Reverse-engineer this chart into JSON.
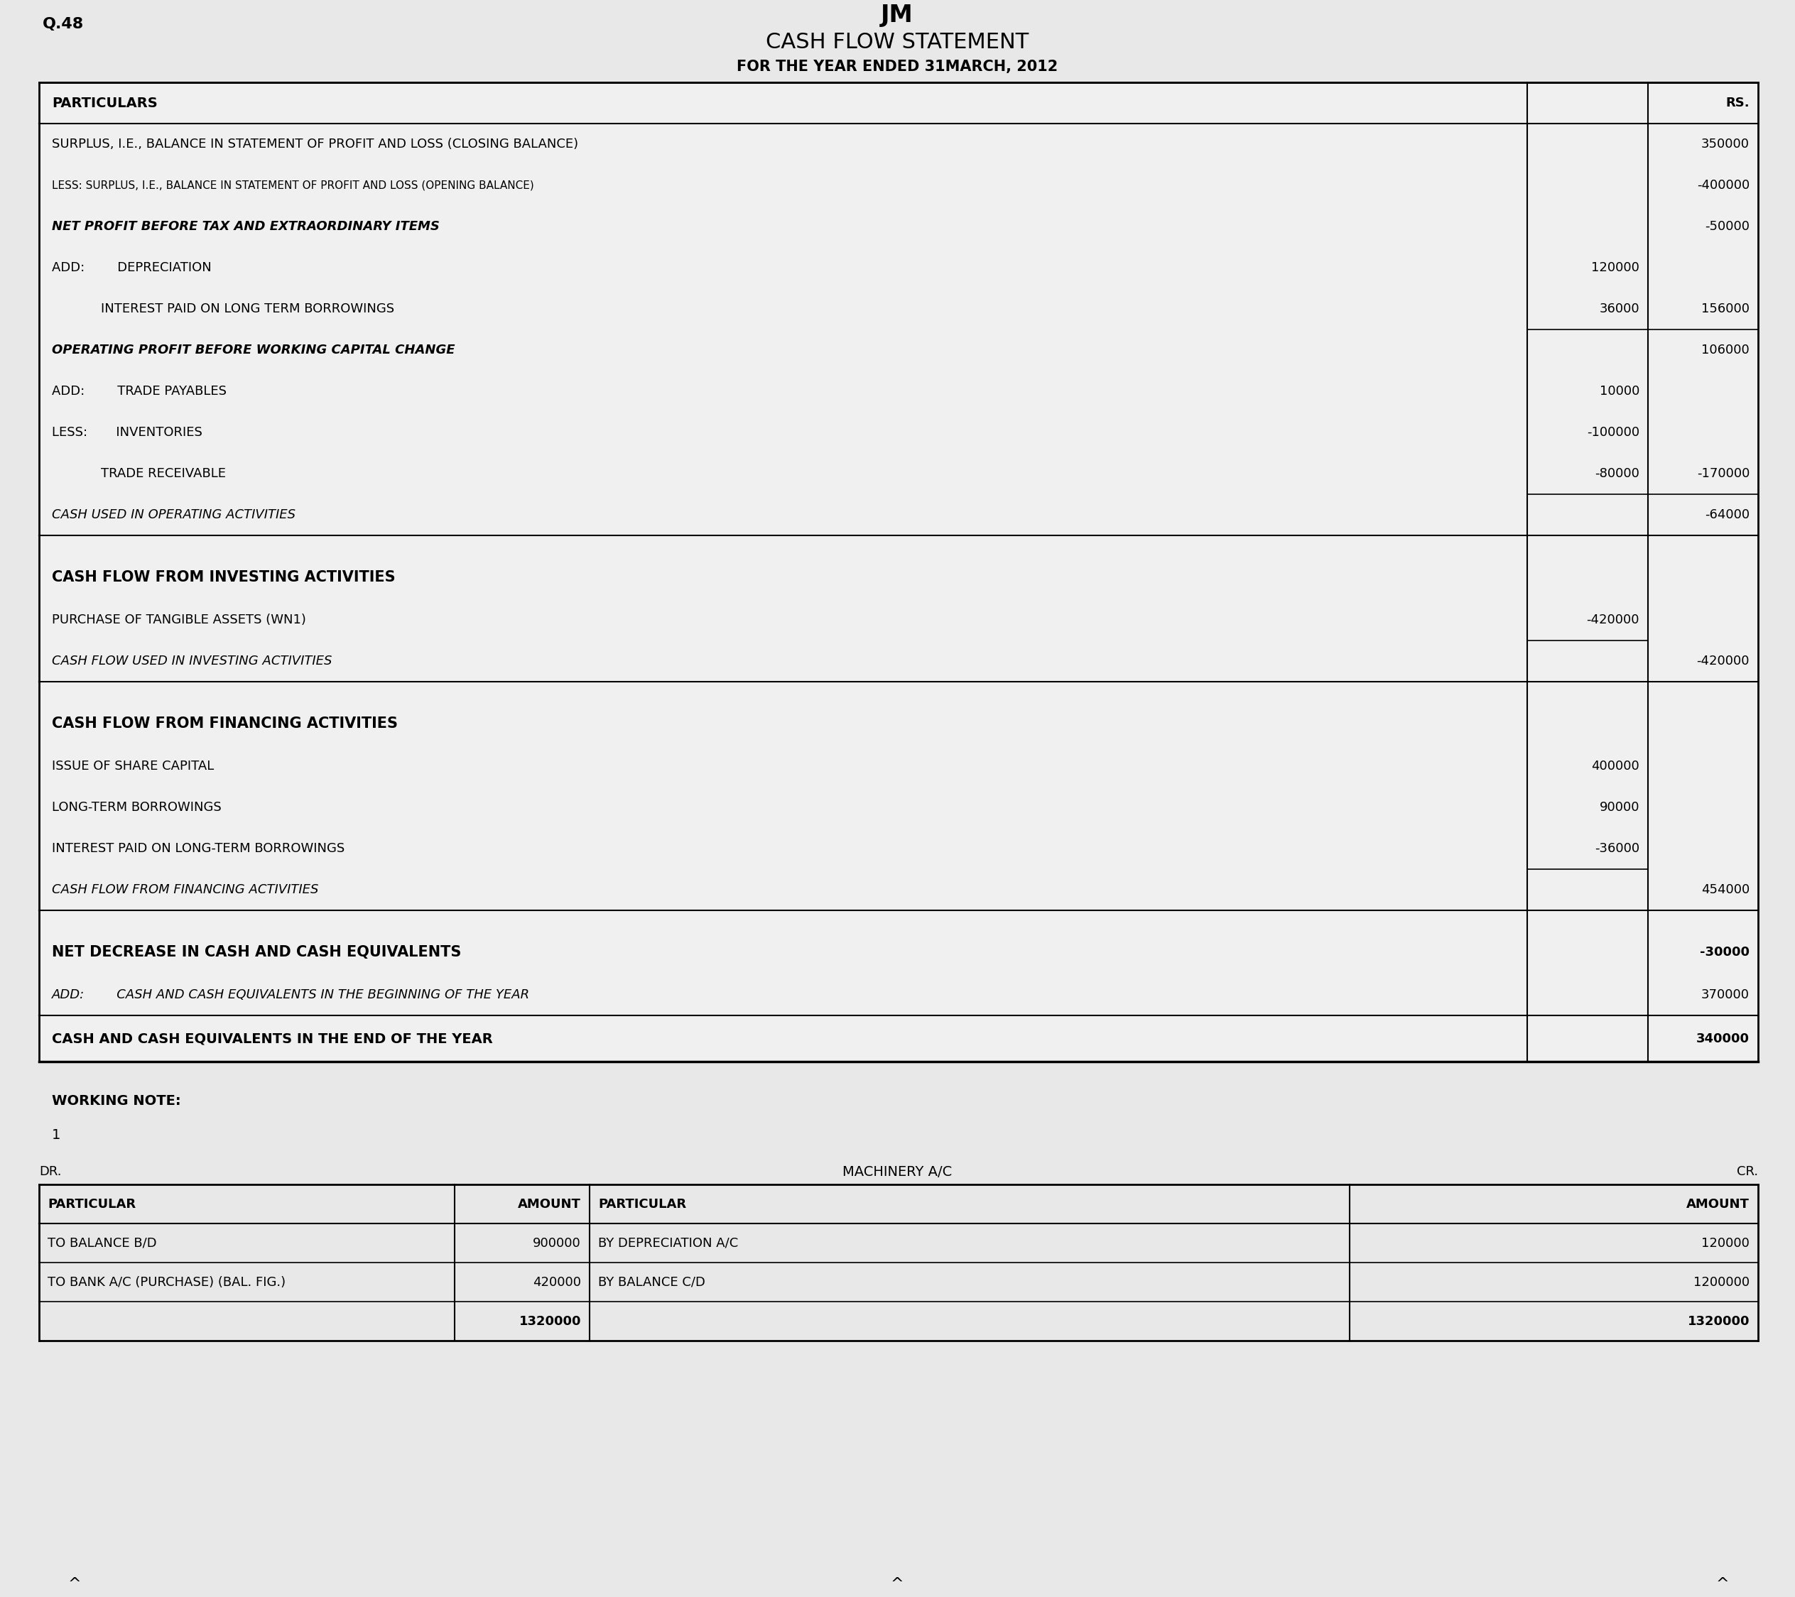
{
  "title": "CASH FLOW STATEMENT",
  "subtitle": "FOR THE YEAR ENDED 31MARCH, 2012",
  "question_no": "Q.48",
  "logo": "JM",
  "bg_color": "#e8e8e8",
  "rows": [
    {
      "text": "PARTICULARS",
      "col1": "",
      "col2": "RS.",
      "style": "header_bold"
    },
    {
      "text": "SURPLUS, I.E., BALANCE IN STATEMENT OF PROFIT AND LOSS (CLOSING BALANCE)",
      "col1": "",
      "col2": "350000",
      "style": "normal"
    },
    {
      "text": "LESS: SURPLUS, I.E., BALANCE IN STATEMENT OF PROFIT AND LOSS (OPENING BALANCE)",
      "col1": "",
      "col2": "-400000",
      "style": "small"
    },
    {
      "text": "NET PROFIT BEFORE TAX AND EXTRAORDINARY ITEMS",
      "col1": "",
      "col2": "-50000",
      "style": "italic_bold"
    },
    {
      "text": "ADD:        DEPRECIATION",
      "col1": "120000",
      "col2": "",
      "style": "normal",
      "indent": 1
    },
    {
      "text": "            INTEREST PAID ON LONG TERM BORROWINGS",
      "col1": "36000",
      "col2": "156000",
      "style": "normal",
      "indent": 2,
      "underline_cols": true
    },
    {
      "text": "OPERATING PROFIT BEFORE WORKING CAPITAL CHANGE",
      "col1": "",
      "col2": "106000",
      "style": "italic_bold"
    },
    {
      "text": "ADD:        TRADE PAYABLES",
      "col1": "10000",
      "col2": "",
      "style": "normal",
      "indent": 1
    },
    {
      "text": "LESS:       INVENTORIES",
      "col1": "-100000",
      "col2": "",
      "style": "normal",
      "indent": 1
    },
    {
      "text": "            TRADE RECEIVABLE",
      "col1": "-80000",
      "col2": "-170000",
      "style": "normal",
      "indent": 2,
      "underline_cols": true
    },
    {
      "text": "CASH USED IN OPERATING ACTIVITIES",
      "col1": "",
      "col2": "-64000",
      "style": "italic_underline"
    },
    {
      "text": "",
      "col1": "",
      "col2": "",
      "style": "spacer"
    },
    {
      "text": "CASH FLOW FROM INVESTING ACTIVITIES",
      "col1": "",
      "col2": "",
      "style": "section_bold"
    },
    {
      "text": "PURCHASE OF TANGIBLE ASSETS (WN1)",
      "col1": "-420000",
      "col2": "",
      "style": "normal",
      "underline_col1": true
    },
    {
      "text": "CASH FLOW USED IN INVESTING ACTIVITIES",
      "col1": "",
      "col2": "-420000",
      "style": "italic_underline"
    },
    {
      "text": "",
      "col1": "",
      "col2": "",
      "style": "spacer"
    },
    {
      "text": "CASH FLOW FROM FINANCING ACTIVITIES",
      "col1": "",
      "col2": "",
      "style": "section_bold"
    },
    {
      "text": "ISSUE OF SHARE CAPITAL",
      "col1": "400000",
      "col2": "",
      "style": "normal"
    },
    {
      "text": "LONG-TERM BORROWINGS",
      "col1": "90000",
      "col2": "",
      "style": "normal"
    },
    {
      "text": "INTEREST PAID ON LONG-TERM BORROWINGS",
      "col1": "-36000",
      "col2": "",
      "style": "normal",
      "underline_col1": true
    },
    {
      "text": "CASH FLOW FROM FINANCING ACTIVITIES",
      "col1": "",
      "col2": "454000",
      "style": "italic_underline"
    },
    {
      "text": "",
      "col1": "",
      "col2": "",
      "style": "spacer"
    },
    {
      "text": "NET DECREASE IN CASH AND CASH EQUIVALENTS",
      "col1": "",
      "col2": "-30000",
      "style": "bold_large"
    },
    {
      "text": "ADD:        CASH AND CASH EQUIVALENTS IN THE BEGINNING OF THE YEAR",
      "col1": "",
      "col2": "370000",
      "style": "italic_normal",
      "indent": 1
    },
    {
      "text": "CASH AND CASH EQUIVALENTS IN THE END OF THE YEAR",
      "col1": "",
      "col2": "340000",
      "style": "final_bold"
    }
  ],
  "working_note_title": "WORKING NOTE:",
  "wn_number": "1",
  "wn_dr": "DR.",
  "wn_account": "MACHINERY A/C",
  "wn_cr": "CR.",
  "wn_headers": [
    "PARTICULAR",
    "AMOUNT",
    "PARTICULAR",
    "AMOUNT"
  ],
  "wn_rows": [
    [
      "TO BALANCE B/D",
      "900000",
      "BY DEPRECIATION A/C",
      "120000"
    ],
    [
      "TO BANK A/C (PURCHASE) (BAL. FIG.)",
      "420000",
      "BY BALANCE C/D",
      "1200000"
    ],
    [
      "",
      "1320000",
      "",
      "1320000"
    ]
  ]
}
